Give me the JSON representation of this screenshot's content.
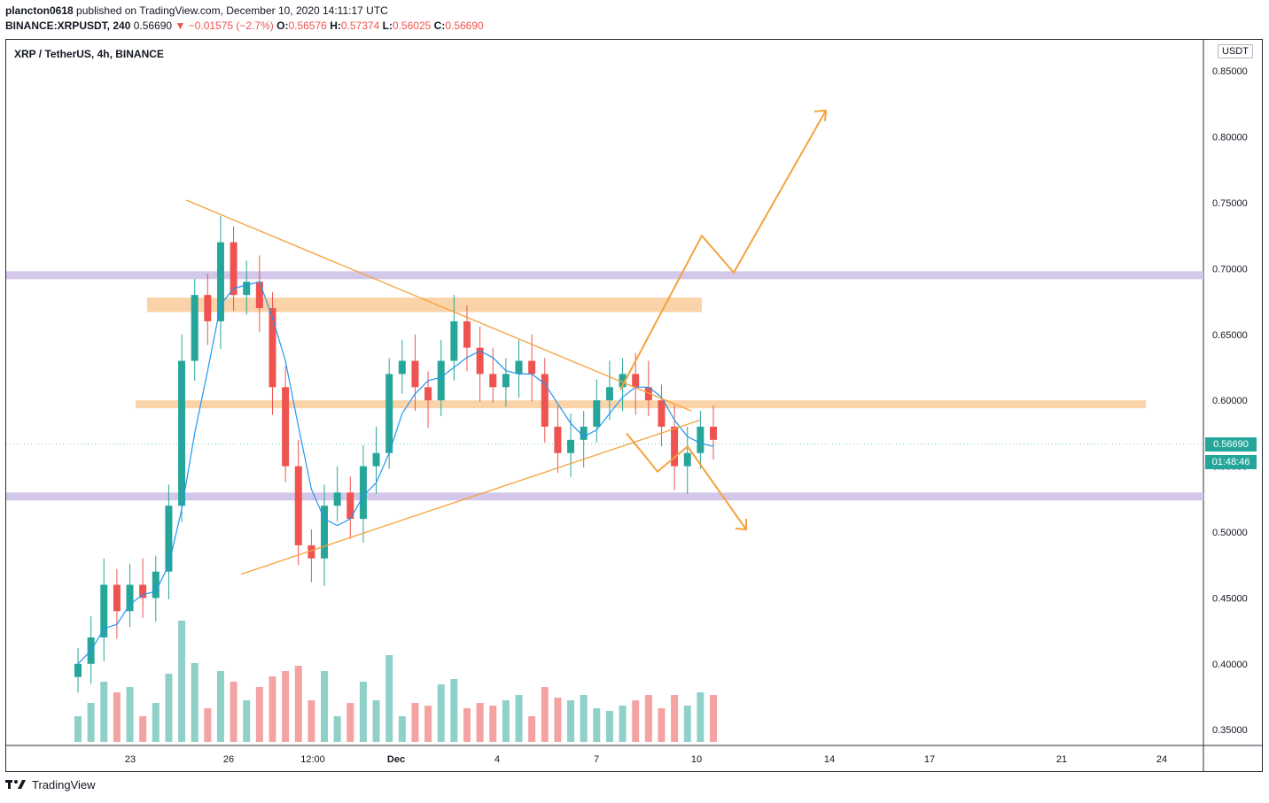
{
  "header": {
    "publisher": "plancton0618",
    "published_text": "published on TradingView.com, December 10, 2020 14:11:17 UTC",
    "symbol_full": "BINANCE:XRPUSDT, 240",
    "last": "0.56690",
    "change_arrow": "▼",
    "change": "−0.01575 (−2.7%)",
    "open_label": "O:",
    "open": "0.56576",
    "high_label": "H:",
    "high": "0.57374",
    "low_label": "L:",
    "low": "0.56025",
    "close_label": "C:",
    "close": "0.56690"
  },
  "chart_label": "XRP / TetherUS, 4h, BINANCE",
  "currency_badge": "USDT",
  "price_tag": {
    "price": "0.56690",
    "countdown": "01:48:46"
  },
  "footer": {
    "logo_text": "TradingView",
    "logo_icon": "tradingview-logo-icon"
  },
  "colors": {
    "up": "#26a69a",
    "down": "#ef5350",
    "vol_up": "#8fd0c9",
    "vol_down": "#f4a3a2",
    "ma": "#2196f3",
    "drawing": "#f5a23c",
    "zone_orange": "#fbd1a4",
    "zone_purple": "#d1c4e9"
  },
  "chart_data": {
    "type": "candlestick",
    "symbol": "XRP / TetherUS",
    "interval": "4h",
    "y_axis": {
      "ylim": [
        0.34,
        0.88
      ],
      "ticks": [
        "0.85000",
        "0.80000",
        "0.75000",
        "0.70000",
        "0.65000",
        "0.60000",
        "0.55000",
        "0.50000",
        "0.45000",
        "0.40000",
        "0.35000"
      ]
    },
    "x_axis": {
      "ticks": [
        "23",
        "26",
        "12:00",
        "Dec",
        "4",
        "7",
        "10",
        "14",
        "17",
        "21",
        "24"
      ],
      "bold_ticks": [
        "Dec"
      ]
    },
    "price_series": [
      0.4,
      0.42,
      0.46,
      0.44,
      0.46,
      0.45,
      0.47,
      0.52,
      0.63,
      0.68,
      0.66,
      0.72,
      0.68,
      0.69,
      0.67,
      0.61,
      0.55,
      0.49,
      0.48,
      0.52,
      0.53,
      0.51,
      0.55,
      0.56,
      0.62,
      0.63,
      0.61,
      0.6,
      0.63,
      0.66,
      0.64,
      0.62,
      0.61,
      0.62,
      0.63,
      0.62,
      0.58,
      0.56,
      0.57,
      0.58,
      0.6,
      0.61,
      0.62,
      0.61,
      0.6,
      0.58,
      0.55,
      0.56,
      0.58,
      0.57
    ],
    "last_price": 0.5669,
    "zones": [
      {
        "price_low": 0.692,
        "price_high": 0.698,
        "color": "purple"
      },
      {
        "price_low": 0.667,
        "price_high": 0.678,
        "color": "orange"
      },
      {
        "price_low": 0.594,
        "price_high": 0.6,
        "color": "orange"
      },
      {
        "price_low": 0.524,
        "price_high": 0.53,
        "color": "purple"
      }
    ],
    "triangle": {
      "upper": [
        [
          0.752,
          0.592
        ]
      ],
      "lower": [
        [
          0.468,
          0.585
        ]
      ]
    },
    "scenarios": [
      {
        "name": "",
        "direction": "up",
        "path": [
          0.608,
          0.725,
          0.697,
          0.82
        ]
      },
      {
        "name": "",
        "direction": "down",
        "path": [
          0.575,
          0.546,
          0.565,
          0.502
        ]
      }
    ]
  }
}
